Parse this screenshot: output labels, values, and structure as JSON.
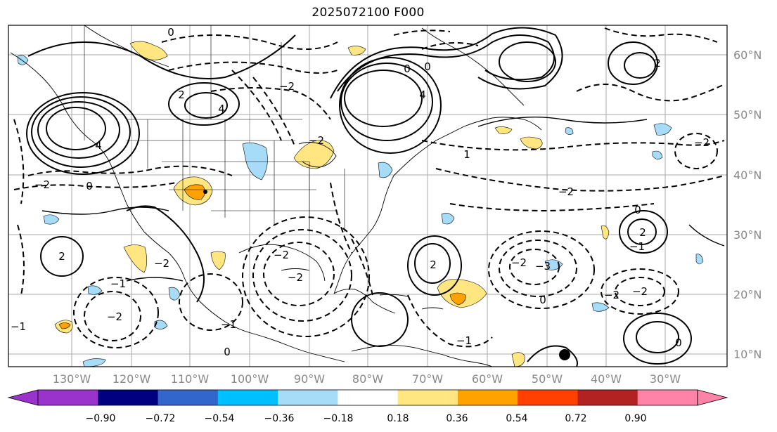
{
  "title": "2025072100 F000",
  "longitude_labels": [
    "130°W",
    "120°W",
    "110°W",
    "100°W",
    "90°W",
    "80°W",
    "70°W",
    "60°W",
    "50°W",
    "40°W",
    "30°W"
  ],
  "latitude_labels": [
    "60°N",
    "50°N",
    "40°N",
    "30°N",
    "20°N",
    "10°N"
  ],
  "colorbar": {
    "colors": [
      "#9933cc",
      "#9933cc",
      "#000080",
      "#3366cc",
      "#00bfff",
      "#a6dcf7",
      "#ffffff",
      "#ffe680",
      "#ffa200",
      "#ff4000",
      "#b22222",
      "#ff82a8",
      "#ff82a8"
    ],
    "ticks": [
      "−0.90",
      "−0.72",
      "−0.54",
      "−0.36",
      "−0.18",
      "0.18",
      "0.36",
      "0.54",
      "0.72",
      "0.90"
    ]
  },
  "contour_labels": [
    "0",
    "2",
    "4",
    "−2",
    "4",
    "0",
    "2",
    "−2",
    "−2",
    "4",
    "0",
    "0",
    "−2",
    "−2",
    "−1",
    "−2",
    "−1",
    "−2",
    "−1",
    "2",
    "−3",
    "0",
    "−2",
    "−2",
    "0",
    "−2",
    "−2",
    "2",
    "−1",
    "0",
    "0",
    "−1",
    "1",
    "−2",
    "2"
  ]
}
